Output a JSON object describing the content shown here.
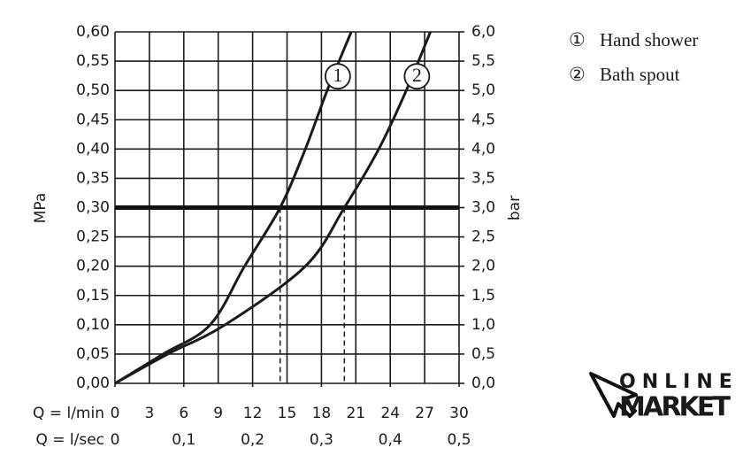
{
  "chart_data": {
    "type": "line",
    "y_label": "MPa",
    "y2_label": "bar",
    "x_label": "Q = l/min",
    "x2_label": "Q = l/sec",
    "xlim": [
      0,
      30
    ],
    "xticks": [
      0,
      3,
      6,
      9,
      12,
      15,
      18,
      21,
      24,
      27,
      30
    ],
    "x2lim": [
      0,
      0.5
    ],
    "x2ticks": [
      0,
      {
        "value": 0.1,
        "label": "0,1"
      },
      {
        "value": 0.2,
        "label": "0,2"
      },
      {
        "value": 0.3,
        "label": "0,3"
      },
      {
        "value": 0.4,
        "label": "0,4"
      },
      {
        "value": 0.5,
        "label": "0,5"
      }
    ],
    "ylim": [
      0,
      0.6
    ],
    "yticks": [
      {
        "value": 0,
        "label": "0,00"
      },
      {
        "value": 0.05,
        "label": "0,05"
      },
      {
        "value": 0.1,
        "label": "0,10"
      },
      {
        "value": 0.15,
        "label": "0,15"
      },
      {
        "value": 0.2,
        "label": "0,20"
      },
      {
        "value": 0.25,
        "label": "0,25"
      },
      {
        "value": 0.3,
        "label": "0,30"
      },
      {
        "value": 0.35,
        "label": "0,35"
      },
      {
        "value": 0.4,
        "label": "0,40"
      },
      {
        "value": 0.45,
        "label": "0,45"
      },
      {
        "value": 0.5,
        "label": "0,50"
      },
      {
        "value": 0.55,
        "label": "0,55"
      },
      {
        "value": 0.6,
        "label": "0,60"
      }
    ],
    "y2lim": [
      0,
      6
    ],
    "y2ticks": [
      {
        "value": 0,
        "label": "0,0"
      },
      {
        "value": 0.5,
        "label": "0,5"
      },
      {
        "value": 1,
        "label": "1,0"
      },
      {
        "value": 1.5,
        "label": "1,5"
      },
      {
        "value": 2,
        "label": "2,0"
      },
      {
        "value": 2.5,
        "label": "2,5"
      },
      {
        "value": 3,
        "label": "3,0"
      },
      {
        "value": 3.5,
        "label": "3,5"
      },
      {
        "value": 4,
        "label": "4,0"
      },
      {
        "value": 4.5,
        "label": "4,5"
      },
      {
        "value": 5,
        "label": "5,0"
      },
      {
        "value": 5.5,
        "label": "5,5"
      },
      {
        "value": 6,
        "label": "6,0"
      }
    ],
    "grid": true,
    "reference_y": 0.3,
    "reference_x": [
      14.4,
      20.0
    ],
    "series": [
      {
        "name": "Hand shower",
        "label": "1",
        "symbol": "①",
        "color": "#1a1a1a",
        "x": [
          0,
          4.2,
          8.3,
          11.3,
          14.4,
          16.6,
          18.5,
          20.6
        ],
        "values": [
          0,
          0.05,
          0.1,
          0.2,
          0.3,
          0.4,
          0.5,
          0.6
        ]
      },
      {
        "name": "Bath spout",
        "label": "2",
        "symbol": "②",
        "color": "#1a1a1a",
        "x": [
          0,
          4.6,
          9.6,
          16.6,
          20.0,
          23.0,
          25.4,
          27.5
        ],
        "values": [
          0,
          0.05,
          0.1,
          0.2,
          0.3,
          0.4,
          0.5,
          0.6
        ]
      }
    ]
  },
  "logo": {
    "line1": "ONLINE",
    "line2": "MARKET"
  }
}
